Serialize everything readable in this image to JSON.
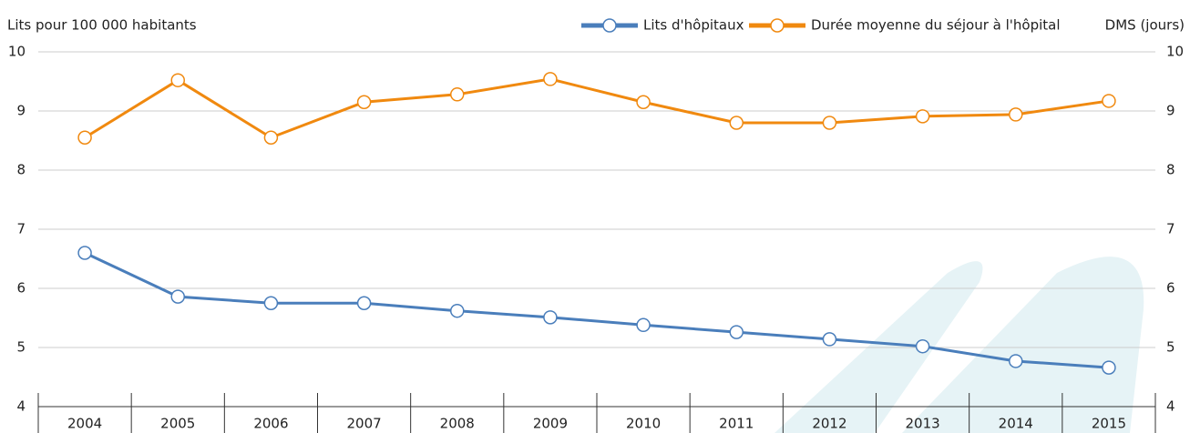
{
  "chart_data": {
    "type": "line",
    "y_label": "Lits pour 100 000 habitants",
    "y2_label": "DMS (jours)",
    "categories": [
      "2004",
      "2005",
      "2006",
      "2007",
      "2008",
      "2009",
      "2010",
      "2011",
      "2012",
      "2013",
      "2014",
      "2015"
    ],
    "series": [
      {
        "name": "Lits d'hôpitaux",
        "color": "#4a7ebb",
        "values": [
          6.6,
          5.86,
          5.75,
          5.75,
          5.62,
          5.51,
          5.38,
          5.26,
          5.14,
          5.02,
          4.77,
          4.66
        ]
      },
      {
        "name": "Durée moyenne du séjour à l'hôpital",
        "color": "#f0890f",
        "axis": "y2",
        "values": [
          8.55,
          9.52,
          8.55,
          9.15,
          9.28,
          9.54,
          9.15,
          8.8,
          8.8,
          8.91,
          8.94,
          9.17
        ]
      }
    ],
    "ylim": [
      4,
      10
    ],
    "yticks": [
      4,
      5,
      6,
      7,
      8,
      9,
      10
    ],
    "y2lim": [
      4,
      10
    ],
    "y2ticks": [
      4,
      5,
      6,
      7,
      8,
      9,
      10
    ],
    "grid": true
  }
}
